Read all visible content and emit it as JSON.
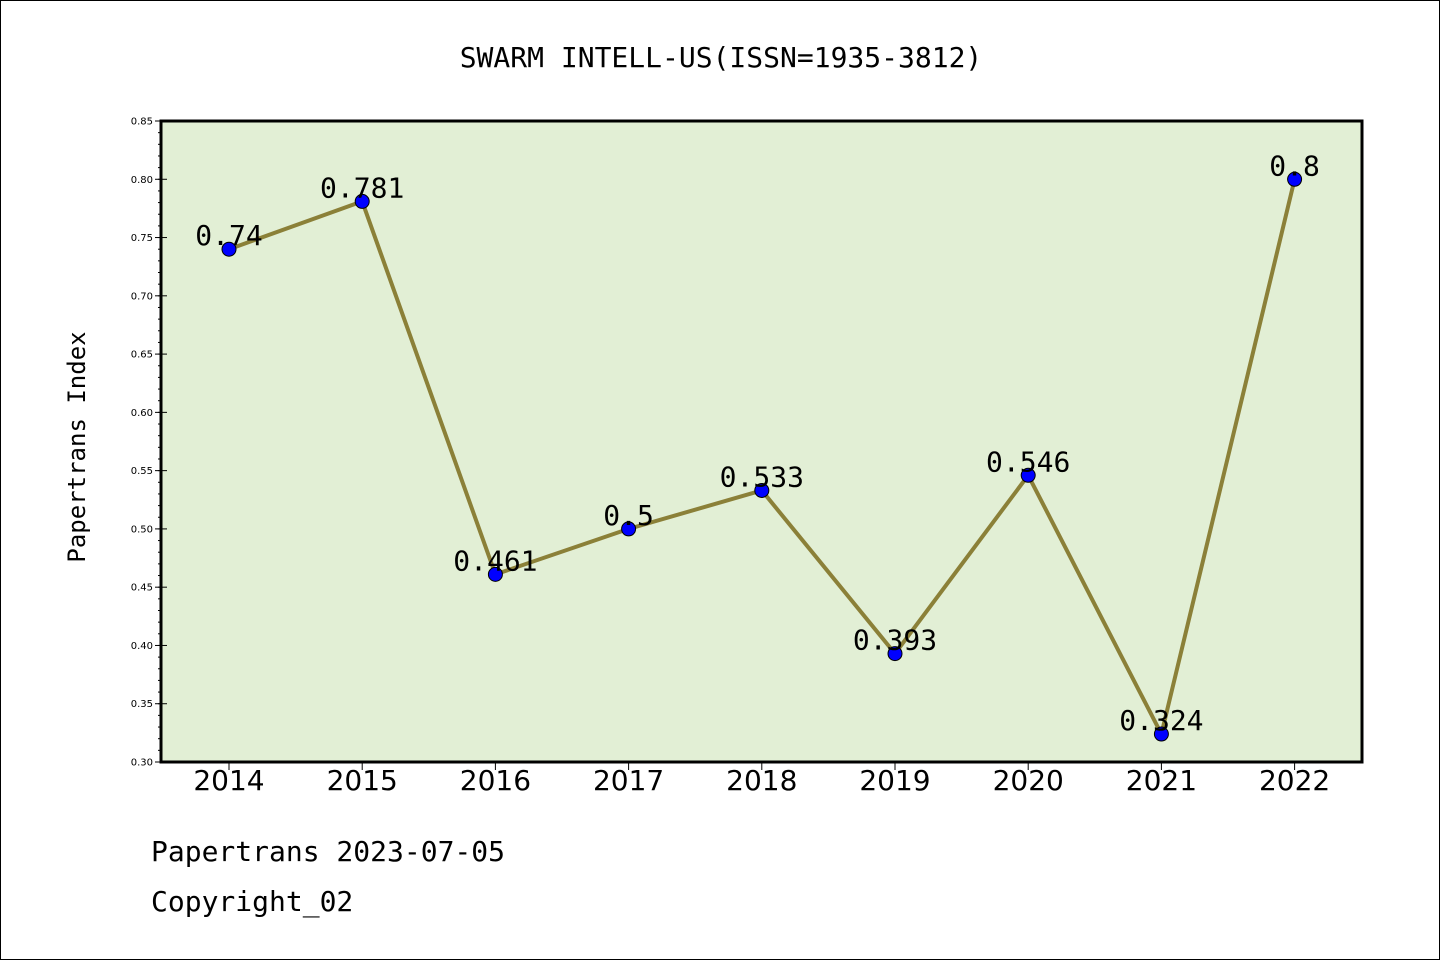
{
  "chart_data": {
    "type": "line",
    "title": "SWARM INTELL-US(ISSN=1935-3812)",
    "xlabel": "",
    "ylabel": "Papertrans Index",
    "categories": [
      "2014",
      "2015",
      "2016",
      "2017",
      "2018",
      "2019",
      "2020",
      "2021",
      "2022"
    ],
    "series": [
      {
        "values": [
          0.74,
          0.781,
          0.461,
          0.5,
          0.533,
          0.393,
          0.546,
          0.324,
          0.8
        ]
      }
    ],
    "data_labels": [
      "0.74",
      "0.781",
      "0.461",
      "0.5",
      "0.533",
      "0.393",
      "0.546",
      "0.324",
      "0.8"
    ],
    "ylim": [
      0.3,
      0.85
    ],
    "yticks": [
      "0.30",
      "0.35",
      "0.40",
      "0.45",
      "0.50",
      "0.55",
      "0.60",
      "0.65",
      "0.70",
      "0.75",
      "0.80",
      "0.85"
    ],
    "grid": false,
    "colors": {
      "plot_background": "#e2efd5",
      "line": "#8b8038",
      "marker": "#0000ff"
    }
  },
  "footer": {
    "line1": "Papertrans 2023-07-05",
    "line2": "Copyright_02"
  }
}
